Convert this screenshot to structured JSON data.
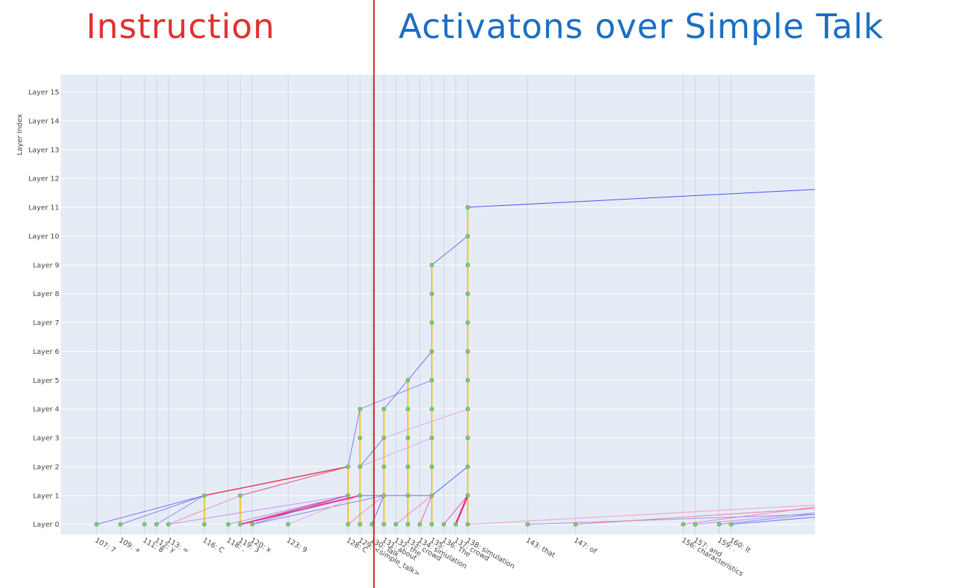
{
  "headers": {
    "left": "Instruction",
    "right": "Activatons over Simple Talk",
    "left_color": "#e03131",
    "right_color": "#1c6fc1"
  },
  "divider_color": "#d62020",
  "chart_data": {
    "type": "scatter",
    "ylabel": "Layer Index",
    "xlabel": "",
    "y_ticks": [
      "Layer 0",
      "Layer 1",
      "Layer 2",
      "Layer 3",
      "Layer 4",
      "Layer 5",
      "Layer 6",
      "Layer 7",
      "Layer 8",
      "Layer 9",
      "Layer 10",
      "Layer 11",
      "Layer 12",
      "Layer 13",
      "Layer 14",
      "Layer 15"
    ],
    "x_range": [
      104,
      167
    ],
    "y_range": [
      -0.35,
      15.6
    ],
    "grid": true,
    "background": "#e5ecf6",
    "tokens": [
      {
        "pos": 107,
        "label": "107: 7"
      },
      {
        "pos": 109,
        "label": "109: +"
      },
      {
        "pos": 111,
        "label": "111: 8"
      },
      {
        "pos": 112,
        "label": "112: y"
      },
      {
        "pos": 113,
        "label": "113: ="
      },
      {
        "pos": 116,
        "label": "116: C"
      },
      {
        "pos": 118,
        "label": "118: ."
      },
      {
        "pos": 119,
        "label": "119: 3"
      },
      {
        "pos": 120,
        "label": "120: x"
      },
      {
        "pos": 123,
        "label": "123: 9"
      },
      {
        "pos": 128,
        "label": "128: C"
      },
      {
        "pos": 129,
        "label": "129: <simple_talk>"
      },
      {
        "pos": 130,
        "label": "130: Talk"
      },
      {
        "pos": 131,
        "label": "131: about"
      },
      {
        "pos": 132,
        "label": "132: the"
      },
      {
        "pos": 133,
        "label": "133: crowd"
      },
      {
        "pos": 134,
        "label": "134: simulation"
      },
      {
        "pos": 135,
        "label": "135: ."
      },
      {
        "pos": 136,
        "label": "136: The"
      },
      {
        "pos": 137,
        "label": "137: crowd"
      },
      {
        "pos": 138,
        "label": "138: simulation"
      },
      {
        "pos": 143,
        "label": "143: that"
      },
      {
        "pos": 147,
        "label": "147: of"
      },
      {
        "pos": 156,
        "label": "156: characteristics"
      },
      {
        "pos": 157,
        "label": "157: and"
      },
      {
        "pos": 159,
        "label": "159: ."
      },
      {
        "pos": 160,
        "label": "160: It"
      }
    ],
    "node_color": "#7fc97f",
    "columns": [
      {
        "x": 107,
        "layers": [
          0
        ]
      },
      {
        "x": 109,
        "layers": [
          0
        ]
      },
      {
        "x": 111,
        "layers": [
          0
        ]
      },
      {
        "x": 112,
        "layers": [
          0
        ]
      },
      {
        "x": 113,
        "layers": [
          0
        ]
      },
      {
        "x": 116,
        "layers": [
          0,
          1
        ]
      },
      {
        "x": 118,
        "layers": [
          0
        ]
      },
      {
        "x": 119,
        "layers": [
          0,
          1
        ]
      },
      {
        "x": 120,
        "layers": [
          0
        ]
      },
      {
        "x": 123,
        "layers": [
          0
        ]
      },
      {
        "x": 128,
        "layers": [
          0,
          1,
          2
        ]
      },
      {
        "x": 129,
        "layers": [
          0,
          1,
          2,
          3,
          4
        ]
      },
      {
        "x": 130,
        "layers": [
          0
        ]
      },
      {
        "x": 131,
        "layers": [
          0,
          1,
          2,
          3,
          4
        ]
      },
      {
        "x": 132,
        "layers": [
          0
        ]
      },
      {
        "x": 133,
        "layers": [
          0,
          1,
          2,
          3,
          4,
          5
        ]
      },
      {
        "x": 134,
        "layers": [
          0
        ]
      },
      {
        "x": 135,
        "layers": [
          0,
          1,
          2,
          3,
          4,
          5,
          6,
          7,
          8,
          9
        ]
      },
      {
        "x": 136,
        "layers": [
          0
        ]
      },
      {
        "x": 137,
        "layers": [
          0
        ]
      },
      {
        "x": 138,
        "layers": [
          0,
          1,
          2,
          3,
          4,
          5,
          6,
          7,
          8,
          9,
          10,
          11
        ]
      },
      {
        "x": 143,
        "layers": [
          0
        ]
      },
      {
        "x": 147,
        "layers": [
          0
        ]
      },
      {
        "x": 156,
        "layers": [
          0
        ]
      },
      {
        "x": 157,
        "layers": [
          0
        ]
      },
      {
        "x": 159,
        "layers": [
          0
        ]
      },
      {
        "x": 160,
        "layers": [
          0
        ]
      }
    ],
    "vertical_color": "#f5c518",
    "edges": [
      {
        "from": [
          107,
          0
        ],
        "to": [
          116,
          1
        ],
        "color": "#5b5bf0",
        "width": 1
      },
      {
        "from": [
          109,
          0
        ],
        "to": [
          116,
          1
        ],
        "color": "#6a6af0",
        "width": 1
      },
      {
        "from": [
          112,
          0
        ],
        "to": [
          116,
          1
        ],
        "color": "#8a7ef0",
        "width": 1
      },
      {
        "from": [
          113,
          0
        ],
        "to": [
          128,
          1
        ],
        "color": "#c77ef0",
        "width": 1
      },
      {
        "from": [
          113,
          0
        ],
        "to": [
          119,
          1
        ],
        "color": "#f07eb0",
        "width": 1
      },
      {
        "from": [
          116,
          1
        ],
        "to": [
          128,
          2
        ],
        "color": "#e8304a",
        "width": 1.6
      },
      {
        "from": [
          119,
          1
        ],
        "to": [
          128,
          2
        ],
        "color": "#e8507a",
        "width": 1.2
      },
      {
        "from": [
          118,
          0
        ],
        "to": [
          128,
          1
        ],
        "color": "#a77ef0",
        "width": 1
      },
      {
        "from": [
          119,
          0
        ],
        "to": [
          129,
          1
        ],
        "color": "#f02080",
        "width": 2.2
      },
      {
        "from": [
          119,
          0
        ],
        "to": [
          128,
          1
        ],
        "color": "#f04090",
        "width": 1.6
      },
      {
        "from": [
          120,
          0
        ],
        "to": [
          128,
          1
        ],
        "color": "#8080f0",
        "width": 1
      },
      {
        "from": [
          120,
          0
        ],
        "to": [
          131,
          1
        ],
        "color": "#7a70f0",
        "width": 1
      },
      {
        "from": [
          123,
          0
        ],
        "to": [
          129,
          1
        ],
        "color": "#f0a0c8",
        "width": 1
      },
      {
        "from": [
          128,
          0
        ],
        "to": [
          131,
          1
        ],
        "color": "#f080b0",
        "width": 1
      },
      {
        "from": [
          128,
          2
        ],
        "to": [
          129,
          4
        ],
        "color": "#6a6af0",
        "width": 1
      },
      {
        "from": [
          129,
          2
        ],
        "to": [
          131,
          3
        ],
        "color": "#6060f0",
        "width": 1
      },
      {
        "from": [
          129,
          2
        ],
        "to": [
          135,
          3
        ],
        "color": "#e09af0",
        "width": 1
      },
      {
        "from": [
          129,
          4
        ],
        "to": [
          135,
          5
        ],
        "color": "#7a7af0",
        "width": 1
      },
      {
        "from": [
          131,
          4
        ],
        "to": [
          133,
          5
        ],
        "color": "#6a6af0",
        "width": 1
      },
      {
        "from": [
          131,
          3
        ],
        "to": [
          138,
          4
        ],
        "color": "#e09af0",
        "width": 1
      },
      {
        "from": [
          133,
          5
        ],
        "to": [
          135,
          6
        ],
        "color": "#5b5bf0",
        "width": 1
      },
      {
        "from": [
          135,
          9
        ],
        "to": [
          138,
          10
        ],
        "color": "#5b5bf0",
        "width": 1
      },
      {
        "from": [
          138,
          11
        ],
        "to": [
          167,
          11.62
        ],
        "color": "#3a3af0",
        "width": 1
      },
      {
        "from": [
          129,
          1
        ],
        "to": [
          135,
          1
        ],
        "color": "#5b5bf0",
        "width": 1
      },
      {
        "from": [
          130,
          0
        ],
        "to": [
          131,
          1
        ],
        "color": "#5050f0",
        "width": 1
      },
      {
        "from": [
          131,
          1
        ],
        "to": [
          135,
          1
        ],
        "color": "#8a7ef0",
        "width": 1
      },
      {
        "from": [
          134,
          0
        ],
        "to": [
          135,
          1
        ],
        "color": "#f05080",
        "width": 1
      },
      {
        "from": [
          132,
          0
        ],
        "to": [
          135,
          1
        ],
        "color": "#f080c0",
        "width": 1
      },
      {
        "from": [
          135,
          1
        ],
        "to": [
          138,
          2
        ],
        "color": "#5050f0",
        "width": 1
      },
      {
        "from": [
          136,
          0
        ],
        "to": [
          138,
          1
        ],
        "color": "#f04080",
        "width": 1
      },
      {
        "from": [
          137,
          0
        ],
        "to": [
          138,
          1
        ],
        "color": "#f01060",
        "width": 2.4
      },
      {
        "from": [
          138,
          0
        ],
        "to": [
          167,
          0.67
        ],
        "color": "#f0a0c0",
        "width": 1.2
      },
      {
        "from": [
          143,
          0
        ],
        "to": [
          167,
          0.35
        ],
        "color": "#8a8af0",
        "width": 1
      },
      {
        "from": [
          147,
          0
        ],
        "to": [
          167,
          0.55
        ],
        "color": "#f07090",
        "width": 1
      },
      {
        "from": [
          156,
          0
        ],
        "to": [
          167,
          0.6
        ],
        "color": "#f070b0",
        "width": 1
      },
      {
        "from": [
          157,
          0
        ],
        "to": [
          167,
          0.4
        ],
        "color": "#c07ef0",
        "width": 1
      },
      {
        "from": [
          159,
          0
        ],
        "to": [
          167,
          0.35
        ],
        "color": "#7a7af0",
        "width": 1
      },
      {
        "from": [
          160,
          0
        ],
        "to": [
          167,
          0.25
        ],
        "color": "#5b5bf0",
        "width": 1
      }
    ]
  }
}
